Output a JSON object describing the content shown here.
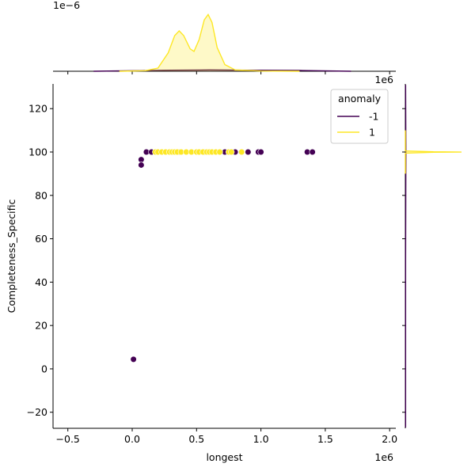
{
  "chart_data": [
    {
      "type": "scatter",
      "xlabel": "longest",
      "ylabel": "Completeness_Specific",
      "x_offset": "1e6",
      "xlim": [
        -615000,
        2048000
      ],
      "ylim": [
        -27.4,
        131.4
      ],
      "xticks": [
        {
          "value": -500000,
          "label": "−0.5"
        },
        {
          "value": 0,
          "label": "0.0"
        },
        {
          "value": 500000,
          "label": "0.5"
        },
        {
          "value": 1000000,
          "label": "1.0"
        },
        {
          "value": 1500000,
          "label": "1.5"
        },
        {
          "value": 2000000,
          "label": "2.0"
        }
      ],
      "yticks": [
        {
          "value": -20,
          "label": "−20"
        },
        0,
        20,
        40,
        60,
        80,
        100,
        120
      ],
      "legend_title": "anomaly",
      "legend": "upper right",
      "series": [
        {
          "name": "-1",
          "color": "#440154",
          "x": [
            10000,
            70000,
            70000,
            110000,
            150000,
            360000,
            570000,
            720000,
            800000,
            900000,
            980000,
            1000000,
            1360000,
            1400000
          ],
          "values": [
            4.4,
            96.5,
            94,
            100,
            100,
            100,
            100,
            100,
            100,
            100,
            100,
            100,
            100,
            100
          ]
        },
        {
          "name": "1",
          "color": "#fde725",
          "x": [
            180000,
            200000,
            230000,
            260000,
            290000,
            310000,
            330000,
            350000,
            380000,
            420000,
            460000,
            500000,
            520000,
            550000,
            580000,
            600000,
            620000,
            650000,
            680000,
            750000,
            770000,
            850000
          ],
          "values": [
            100,
            100,
            100,
            100,
            100,
            100,
            100,
            100,
            100,
            100,
            100,
            100,
            100,
            100,
            100,
            100,
            100,
            100,
            100,
            100,
            100,
            100
          ]
        }
      ]
    },
    {
      "type": "kde",
      "orient": "x",
      "x_offset": "1e6",
      "y_offset": "1e−6",
      "xlim": [
        -615000,
        2048000
      ],
      "ylim": [
        0,
        2.4e-06
      ],
      "xticks": [
        -500000,
        0,
        500000,
        1000000,
        1500000,
        2000000
      ],
      "series": [
        {
          "color": "#440154",
          "x": [
            -300000,
            0,
            300000,
            600000,
            900000,
            1300000,
            1700000
          ],
          "values": [
            0,
            2e-08,
            4e-08,
            5e-08,
            4e-08,
            3e-08,
            0
          ]
        },
        {
          "color": "#fde725",
          "x": [
            -100000,
            100000,
            200000,
            280000,
            330000,
            365000,
            400000,
            450000,
            480000,
            520000,
            560000,
            590000,
            620000,
            660000,
            720000,
            800000,
            1000000,
            1300000
          ],
          "values": [
            0,
            2e-08,
            1.2e-07,
            7e-07,
            1.35e-06,
            1.53e-06,
            1.35e-06,
            8.5e-07,
            7.5e-07,
            1.2e-06,
            1.95e-06,
            2.15e-06,
            1.85e-06,
            9e-07,
            2.5e-07,
            5e-08,
            1e-08,
            0
          ]
        }
      ]
    },
    {
      "type": "kde",
      "orient": "y",
      "xlim": [
        0,
        1.1
      ],
      "ylim": [
        -27.4,
        131.4
      ],
      "yticks": [
        -20,
        0,
        20,
        40,
        60,
        80,
        100,
        120
      ],
      "series": [
        {
          "color": "#440154",
          "y": [
            -27,
            0,
            50,
            100,
            131
          ],
          "values": [
            0.005,
            0.005,
            0.005,
            0.01,
            0.005
          ]
        },
        {
          "color": "#fde725",
          "y": [
            90,
            99.5,
            99.9,
            100,
            100.1,
            100.5,
            110
          ],
          "values": [
            0,
            0,
            0.5,
            1.0,
            0.5,
            0,
            0
          ]
        }
      ]
    }
  ]
}
